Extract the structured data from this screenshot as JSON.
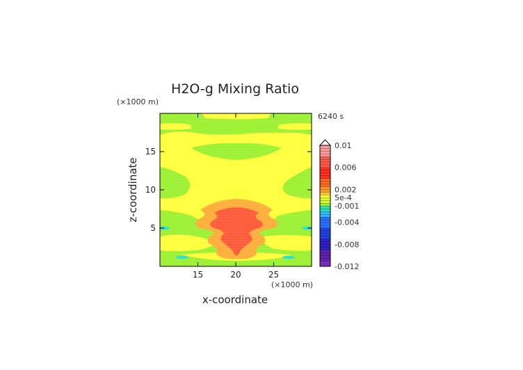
{
  "chart_data": {
    "type": "heatmap",
    "title": "H2O-g Mixing Ratio",
    "xlabel": "x-coordinate",
    "ylabel": "z-coordinate",
    "x_unit": "(×1000 m)",
    "y_unit": "(×1000 m)",
    "time_label": "6240 s",
    "xlim": [
      10,
      30
    ],
    "ylim": [
      0,
      20
    ],
    "x_ticks": [
      "15",
      "20",
      "25"
    ],
    "y_ticks": [
      "5",
      "10",
      "15"
    ],
    "x_tick_values": [
      15,
      20,
      25
    ],
    "y_tick_values": [
      5,
      10,
      15
    ],
    "colorbar_labels": [
      "0.01",
      "0.006",
      "0.002",
      "5e-4",
      "-0.001",
      "-0.004",
      "-0.008",
      "-0.012"
    ],
    "colorbar_label_values": [
      0.01,
      0.006,
      0.002,
      0.0005,
      -0.001,
      -0.004,
      -0.008,
      -0.012
    ],
    "colorbar_range": [
      -0.012,
      0.01
    ],
    "colors": {
      "background_field": "#9cf232",
      "moist_band": "#ffff3c",
      "core_orange": "#ffae3a",
      "core_red": "#ff5a3a",
      "negative_cyan": "#33ddd0"
    }
  }
}
